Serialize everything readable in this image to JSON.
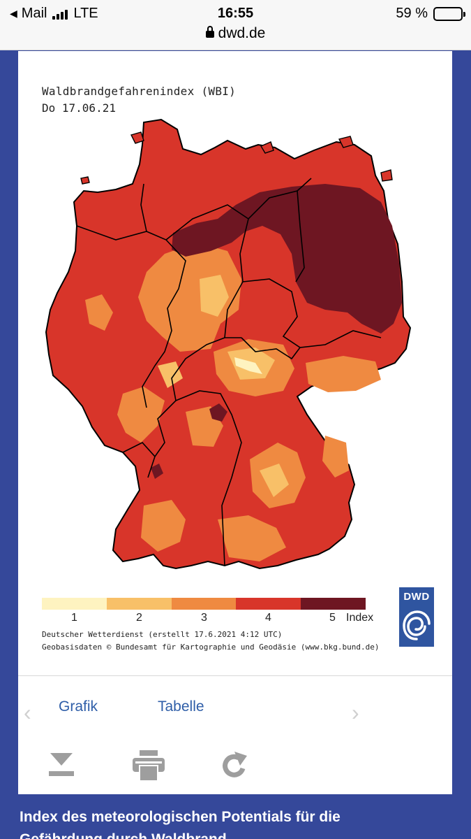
{
  "status_bar": {
    "back_label": "Mail",
    "network": "LTE",
    "time": "16:55",
    "url": "dwd.de",
    "battery": "59 %",
    "battery_level": 0.59
  },
  "map": {
    "title": "Waldbrandgefahrenindex (WBI)",
    "date": "Do 17.06.21",
    "region": "Germany",
    "legend": {
      "colors": [
        "#fef3c0",
        "#f8c068",
        "#ef8a41",
        "#d8352a",
        "#6e1622"
      ],
      "labels": [
        "1",
        "2",
        "3",
        "4",
        "5"
      ],
      "unit_label": "Index"
    },
    "credit_line1": "Deutscher Wetterdienst (erstellt 17.6.2021 4:12 UTC)",
    "credit_line2": "Geobasisdaten © Bundesamt für Kartographie und Geodäsie (www.bkg.bund.de)",
    "logo_text": "DWD"
  },
  "tabs": {
    "grafik": "Grafik",
    "tabelle": "Tabelle"
  },
  "toolbar": {
    "download_icon": "download-icon",
    "print_icon": "print-icon",
    "refresh_icon": "refresh-icon"
  },
  "footer": {
    "heading_line1": "Index des meteorologischen Potentials für die",
    "heading_line2": "Gefährdung durch Waldbrand"
  }
}
